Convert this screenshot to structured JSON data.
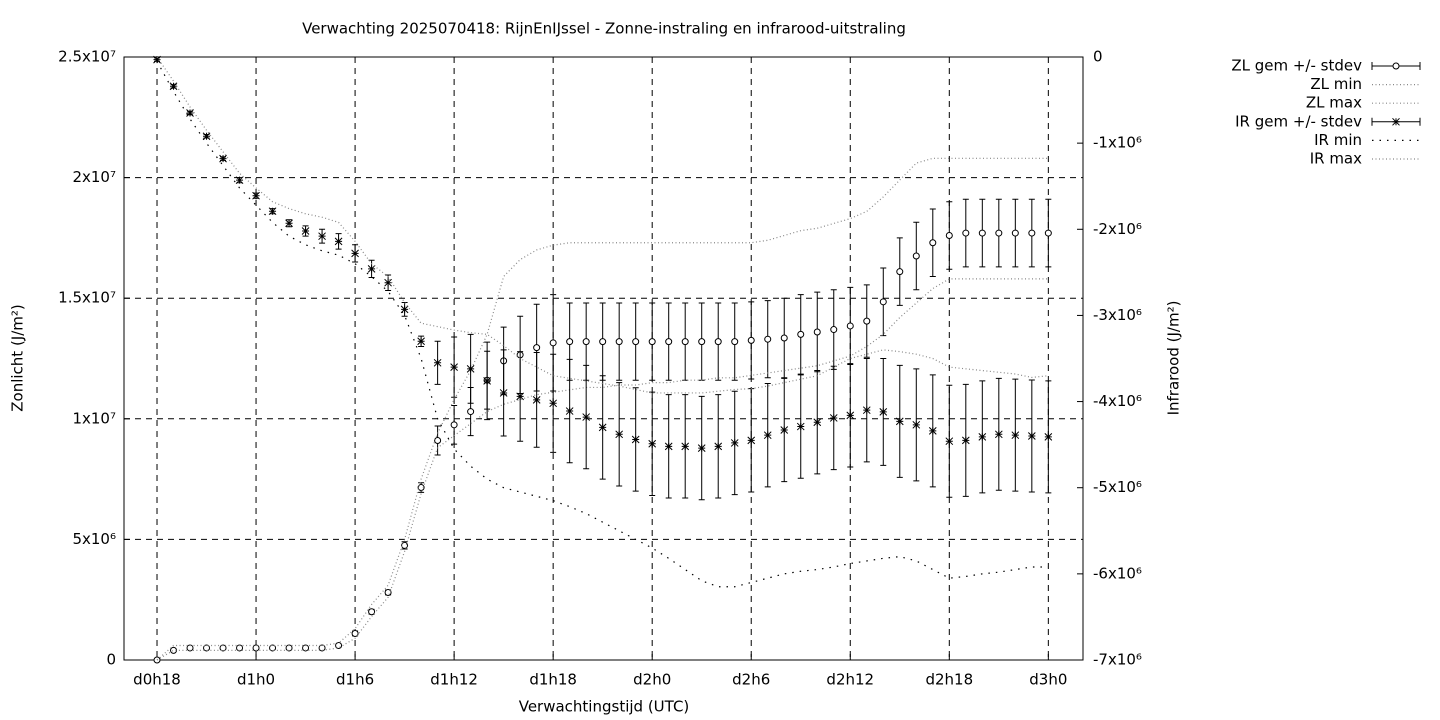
{
  "chart_data": {
    "type": "errorbars",
    "title": "Verwachting 2025070418: RijnEnIJssel - Zonne-instraling en infrarood-uitstraling",
    "xlabel": "Verwachtingstijd (UTC)",
    "ylabel": "Zonlicht (J/m²)",
    "y2label": "Infrarood (J/m²)",
    "grid": true,
    "legend": "outside-right",
    "xlim": [
      16,
      74.1
    ],
    "ylim": [
      0,
      25000000.0
    ],
    "y2lim": [
      -7000000.0,
      0
    ],
    "xticks": [
      {
        "value": 18,
        "label": "d0h18"
      },
      {
        "value": 24,
        "label": "d1h0"
      },
      {
        "value": 30,
        "label": "d1h6"
      },
      {
        "value": 36,
        "label": "d1h12"
      },
      {
        "value": 42,
        "label": "d1h18"
      },
      {
        "value": 48,
        "label": "d2h0"
      },
      {
        "value": 54,
        "label": "d2h6"
      },
      {
        "value": 60,
        "label": "d2h12"
      },
      {
        "value": 66,
        "label": "d2h18"
      },
      {
        "value": 72,
        "label": "d3h0"
      }
    ],
    "yticks": [
      0,
      {
        "value": 5000000.0,
        "label": "5x10⁶"
      },
      {
        "value": 10000000.0,
        "label": "1x10⁷"
      },
      {
        "value": 15000000.0,
        "label": "1.5x10⁷"
      },
      {
        "value": 20000000.0,
        "label": "2x10⁷"
      },
      {
        "value": 25000000.0,
        "label": "2.5x10⁷"
      }
    ],
    "y2ticks": [
      0,
      {
        "value": -1000000.0,
        "label": "-1x10⁶"
      },
      {
        "value": -2000000.0,
        "label": "-2x10⁶"
      },
      {
        "value": -3000000.0,
        "label": "-3x10⁶"
      },
      {
        "value": -4000000.0,
        "label": "-4x10⁶"
      },
      {
        "value": -5000000.0,
        "label": "-5x10⁶"
      },
      {
        "value": -6000000.0,
        "label": "-6x10⁶"
      },
      {
        "value": -7000000.0,
        "label": "-7x10⁶"
      }
    ],
    "x": [
      18,
      19,
      20,
      21,
      22,
      23,
      24,
      25,
      26,
      27,
      28,
      29,
      30,
      31,
      32,
      33,
      34,
      35,
      36,
      37,
      38,
      39,
      40,
      41,
      42,
      43,
      44,
      45,
      46,
      47,
      48,
      49,
      50,
      51,
      52,
      53,
      54,
      55,
      56,
      57,
      58,
      59,
      60,
      61,
      62,
      63,
      64,
      65,
      66,
      67,
      68,
      69,
      70,
      71,
      72
    ],
    "series": [
      {
        "name": "ZL gem +/- stdev",
        "color": "#000000",
        "marker": "circle",
        "axis": "y",
        "values": [
          0,
          400000.0,
          500000.0,
          500000.0,
          500000.0,
          500000.0,
          500000.0,
          500000.0,
          500000.0,
          500000.0,
          500000.0,
          600000.0,
          1100000.0,
          2000000.0,
          2800000.0,
          4750000.0,
          7150000.0,
          9100000.0,
          9750000.0,
          10300000.0,
          11600000.0,
          12400000.0,
          12650000.0,
          12950000.0,
          13150000.0,
          13200000.0,
          13200000.0,
          13200000.0,
          13200000.0,
          13200000.0,
          13200000.0,
          13200000.0,
          13200000.0,
          13200000.0,
          13200000.0,
          13200000.0,
          13250000.0,
          13300000.0,
          13350000.0,
          13500000.0,
          13600000.0,
          13700000.0,
          13850000.0,
          14050000.0,
          14850000.0,
          16100000.0,
          16750000.0,
          17300000.0,
          17600000.0,
          17700000.0,
          17700000.0,
          17700000.0,
          17700000.0,
          17700000.0,
          17700000.0
        ],
        "errors": [
          50000.0,
          50000.0,
          50000.0,
          50000.0,
          50000.0,
          50000.0,
          50000.0,
          50000.0,
          50000.0,
          50000.0,
          50000.0,
          50000.0,
          100000.0,
          100000.0,
          100000.0,
          150000.0,
          200000.0,
          600000.0,
          800000.0,
          1000000.0,
          1200000.0,
          1400000.0,
          1600000.0,
          1800000.0,
          2000000.0,
          1600000.0,
          1600000.0,
          1600000.0,
          1600000.0,
          1600000.0,
          1600000.0,
          1600000.0,
          1600000.0,
          1600000.0,
          1600000.0,
          1600000.0,
          1600000.0,
          1600000.0,
          1650000.0,
          1650000.0,
          1650000.0,
          1650000.0,
          1600000.0,
          1500000.0,
          1400000.0,
          1400000.0,
          1400000.0,
          1400000.0,
          1400000.0,
          1400000.0,
          1400000.0,
          1400000.0,
          1400000.0,
          1400000.0,
          1400000.0
        ]
      },
      {
        "name": "ZL min",
        "color": "#888888",
        "axis": "y",
        "values": [
          0,
          400000.0,
          400000.0,
          400000.0,
          400000.0,
          400000.0,
          400000.0,
          400000.0,
          400000.0,
          400000.0,
          400000.0,
          500000.0,
          900000.0,
          1800000.0,
          2600000.0,
          4500000.0,
          6900000.0,
          8800000.0,
          9300000.0,
          9800000.0,
          10300000.0,
          10600000.0,
          10800000.0,
          11000000.0,
          11100000.0,
          11200000.0,
          11300000.0,
          11300000.0,
          11400000.0,
          11400000.0,
          11500000.0,
          11500000.0,
          11600000.0,
          11600000.0,
          11700000.0,
          11700000.0,
          11800000.0,
          11900000.0,
          12000000.0,
          12100000.0,
          12200000.0,
          12400000.0,
          12600000.0,
          13000000.0,
          13500000.0,
          14200000.0,
          14800000.0,
          15400000.0,
          15800000.0,
          15800000.0,
          15800000.0,
          15800000.0,
          15800000.0,
          15800000.0,
          15800000.0
        ]
      },
      {
        "name": "ZL max",
        "color": "#888888",
        "axis": "y",
        "values": [
          0,
          600000.0,
          600000.0,
          600000.0,
          600000.0,
          600000.0,
          600000.0,
          600000.0,
          600000.0,
          600000.0,
          600000.0,
          700000.0,
          1300000.0,
          2300000.0,
          3100000.0,
          5000000.0,
          7500000.0,
          9400000.0,
          10800000.0,
          12000000.0,
          13500000.0,
          15900000.0,
          16600000.0,
          17000000.0,
          17200000.0,
          17300000.0,
          17300000.0,
          17300000.0,
          17300000.0,
          17300000.0,
          17300000.0,
          17300000.0,
          17300000.0,
          17300000.0,
          17300000.0,
          17300000.0,
          17300000.0,
          17400000.0,
          17600000.0,
          17800000.0,
          17900000.0,
          18100000.0,
          18300000.0,
          18600000.0,
          19200000.0,
          19900000.0,
          20600000.0,
          20800000.0,
          20800000.0,
          20800000.0,
          20800000.0,
          20800000.0,
          20800000.0,
          20800000.0,
          20800000.0
        ]
      },
      {
        "name": "IR gem +/- stdev",
        "color": "#000000",
        "marker": "asterisk",
        "axis": "y2",
        "values": [
          -30000.0,
          -340000.0,
          -650000.0,
          -920000.0,
          -1180000.0,
          -1430000.0,
          -1610000.0,
          -1790000.0,
          -1930000.0,
          -2020000.0,
          -2080000.0,
          -2140000.0,
          -2280000.0,
          -2460000.0,
          -2620000.0,
          -2930000.0,
          -3300000.0,
          -3550000.0,
          -3600000.0,
          -3620000.0,
          -3760000.0,
          -3900000.0,
          -3940000.0,
          -3980000.0,
          -4020000.0,
          -4110000.0,
          -4180000.0,
          -4300000.0,
          -4380000.0,
          -4440000.0,
          -4490000.0,
          -4520000.0,
          -4520000.0,
          -4540000.0,
          -4520000.0,
          -4480000.0,
          -4450000.0,
          -4390000.0,
          -4330000.0,
          -4290000.0,
          -4240000.0,
          -4190000.0,
          -4160000.0,
          -4100000.0,
          -4120000.0,
          -4230000.0,
          -4270000.0,
          -4340000.0,
          -4460000.0,
          -4450000.0,
          -4410000.0,
          -4380000.0,
          -4390000.0,
          -4400000.0,
          -4410000.0
        ],
        "errors": [
          20000.0,
          20000.0,
          20000.0,
          20000.0,
          20000.0,
          30000.0,
          30000.0,
          30000.0,
          40000.0,
          60000.0,
          80000.0,
          90000.0,
          100000.0,
          100000.0,
          90000.0,
          80000.0,
          60000.0,
          250000.0,
          350000.0,
          400000.0,
          450000.0,
          500000.0,
          520000.0,
          550000.0,
          570000.0,
          600000.0,
          600000.0,
          600000.0,
          600000.0,
          600000.0,
          600000.0,
          600000.0,
          600000.0,
          600000.0,
          600000.0,
          600000.0,
          600000.0,
          600000.0,
          600000.0,
          600000.0,
          600000.0,
          600000.0,
          600000.0,
          600000.0,
          620000.0,
          650000.0,
          650000.0,
          650000.0,
          650000.0,
          650000.0,
          650000.0,
          650000.0,
          650000.0,
          650000.0,
          650000.0
        ]
      },
      {
        "name": "IR min",
        "color": "#000000",
        "axis": "y2",
        "values": [
          -50000.0,
          -400000.0,
          -720000.0,
          -1000000.0,
          -1260000.0,
          -1520000.0,
          -1720000.0,
          -1920000.0,
          -2080000.0,
          -2180000.0,
          -2250000.0,
          -2300000.0,
          -2400000.0,
          -2550000.0,
          -2720000.0,
          -3000000.0,
          -3500000.0,
          -4200000.0,
          -4550000.0,
          -4750000.0,
          -4900000.0,
          -5000000.0,
          -5050000.0,
          -5100000.0,
          -5150000.0,
          -5220000.0,
          -5300000.0,
          -5400000.0,
          -5500000.0,
          -5600000.0,
          -5700000.0,
          -5820000.0,
          -5950000.0,
          -6080000.0,
          -6150000.0,
          -6150000.0,
          -6100000.0,
          -6050000.0,
          -6000000.0,
          -5970000.0,
          -5950000.0,
          -5920000.0,
          -5880000.0,
          -5850000.0,
          -5820000.0,
          -5800000.0,
          -5850000.0,
          -5950000.0,
          -6050000.0,
          -6030000.0,
          -6000000.0,
          -5980000.0,
          -5950000.0,
          -5920000.0,
          -5920000.0
        ]
      },
      {
        "name": "IR max",
        "color": "#888888",
        "axis": "y2",
        "values": [
          0,
          -280000.0,
          -580000.0,
          -850000.0,
          -1100000.0,
          -1350000.0,
          -1520000.0,
          -1680000.0,
          -1760000.0,
          -1820000.0,
          -1860000.0,
          -1920000.0,
          -2140000.0,
          -2400000.0,
          -2550000.0,
          -2850000.0,
          -3090000.0,
          -3130000.0,
          -3170000.0,
          -3200000.0,
          -3220000.0,
          -3350000.0,
          -3500000.0,
          -3600000.0,
          -3700000.0,
          -3730000.0,
          -3760000.0,
          -3790000.0,
          -3820000.0,
          -3860000.0,
          -3900000.0,
          -3900000.0,
          -3900000.0,
          -3900000.0,
          -3880000.0,
          -3860000.0,
          -3850000.0,
          -3820000.0,
          -3780000.0,
          -3740000.0,
          -3700000.0,
          -3600000.0,
          -3500000.0,
          -3450000.0,
          -3400000.0,
          -3420000.0,
          -3450000.0,
          -3500000.0,
          -3600000.0,
          -3620000.0,
          -3640000.0,
          -3660000.0,
          -3680000.0,
          -3720000.0,
          -3700000.0
        ]
      }
    ]
  }
}
